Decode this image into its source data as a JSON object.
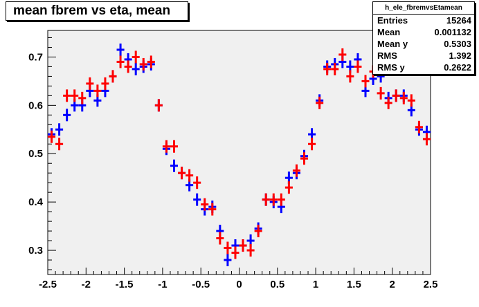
{
  "title": "mean fbrem vs eta, mean",
  "stats": {
    "name": "h_ele_fbremvsEtamean",
    "rows": [
      {
        "label": "Entries",
        "value": "15264"
      },
      {
        "label": "Mean",
        "value": "0.001132"
      },
      {
        "label": "Mean y",
        "value": "0.5303"
      },
      {
        "label": "RMS",
        "value": "1.392"
      },
      {
        "label": "RMS y",
        "value": "0.2622"
      }
    ]
  },
  "colors": {
    "plot_bg": "#f0f0f0",
    "series_blue": "#0000ff",
    "series_red": "#ff0000"
  },
  "chart_data": {
    "type": "scatter",
    "title": "mean fbrem vs eta, mean",
    "xlabel": "",
    "ylabel": "",
    "xlim": [
      -2.5,
      2.5
    ],
    "ylim": [
      0.25,
      0.755
    ],
    "x_ticks": [
      "-2.5",
      "-2",
      "-1.5",
      "-1",
      "-0.5",
      "0",
      "0.5",
      "1",
      "1.5",
      "2",
      "2.5"
    ],
    "y_ticks": [
      "0.3",
      "0.4",
      "0.5",
      "0.6",
      "0.7"
    ],
    "grid": false,
    "series": [
      {
        "color": "#0000ff",
        "x_err": 0.05,
        "points": [
          [
            -2.45,
            0.54
          ],
          [
            -2.35,
            0.55
          ],
          [
            -2.25,
            0.58
          ],
          [
            -2.15,
            0.6
          ],
          [
            -2.05,
            0.6
          ],
          [
            -1.95,
            0.63
          ],
          [
            -1.85,
            0.61
          ],
          [
            -1.75,
            0.63
          ],
          [
            -1.65,
            0.66
          ],
          [
            -1.55,
            0.715
          ],
          [
            -1.45,
            0.695
          ],
          [
            -1.35,
            0.675
          ],
          [
            -1.25,
            0.68
          ],
          [
            -1.15,
            0.685
          ],
          [
            -1.05,
            0.6
          ],
          [
            -0.95,
            0.51
          ],
          [
            -0.85,
            0.475
          ],
          [
            -0.75,
            0.46
          ],
          [
            -0.65,
            0.435
          ],
          [
            -0.55,
            0.405
          ],
          [
            -0.45,
            0.385
          ],
          [
            -0.35,
            0.39
          ],
          [
            -0.25,
            0.34
          ],
          [
            -0.15,
            0.28
          ],
          [
            -0.05,
            0.31
          ],
          [
            0.05,
            0.31
          ],
          [
            0.15,
            0.32
          ],
          [
            0.25,
            0.345
          ],
          [
            0.35,
            0.405
          ],
          [
            0.45,
            0.4
          ],
          [
            0.55,
            0.39
          ],
          [
            0.65,
            0.45
          ],
          [
            0.75,
            0.46
          ],
          [
            0.85,
            0.495
          ],
          [
            0.95,
            0.54
          ],
          [
            1.05,
            0.61
          ],
          [
            1.15,
            0.68
          ],
          [
            1.25,
            0.685
          ],
          [
            1.35,
            0.69
          ],
          [
            1.45,
            0.68
          ],
          [
            1.55,
            0.695
          ],
          [
            1.65,
            0.63
          ],
          [
            1.75,
            0.655
          ],
          [
            1.85,
            0.66
          ],
          [
            1.95,
            0.615
          ],
          [
            2.05,
            0.62
          ],
          [
            2.15,
            0.62
          ],
          [
            2.25,
            0.59
          ],
          [
            2.35,
            0.55
          ],
          [
            2.45,
            0.545
          ]
        ]
      },
      {
        "color": "#ff0000",
        "x_err": 0.05,
        "points": [
          [
            -2.45,
            0.535
          ],
          [
            -2.35,
            0.52
          ],
          [
            -2.25,
            0.62
          ],
          [
            -2.15,
            0.62
          ],
          [
            -2.05,
            0.615
          ],
          [
            -1.95,
            0.645
          ],
          [
            -1.85,
            0.63
          ],
          [
            -1.75,
            0.645
          ],
          [
            -1.65,
            0.66
          ],
          [
            -1.55,
            0.69
          ],
          [
            -1.45,
            0.68
          ],
          [
            -1.35,
            0.7
          ],
          [
            -1.25,
            0.685
          ],
          [
            -1.15,
            0.69
          ],
          [
            -1.05,
            0.6
          ],
          [
            -0.95,
            0.515
          ],
          [
            -0.85,
            0.515
          ],
          [
            -0.75,
            0.46
          ],
          [
            -0.65,
            0.455
          ],
          [
            -0.55,
            0.44
          ],
          [
            -0.45,
            0.395
          ],
          [
            -0.35,
            0.385
          ],
          [
            -0.25,
            0.325
          ],
          [
            -0.15,
            0.305
          ],
          [
            -0.05,
            0.295
          ],
          [
            0.05,
            0.31
          ],
          [
            0.15,
            0.3
          ],
          [
            0.25,
            0.34
          ],
          [
            0.35,
            0.405
          ],
          [
            0.45,
            0.405
          ],
          [
            0.55,
            0.405
          ],
          [
            0.65,
            0.43
          ],
          [
            0.75,
            0.465
          ],
          [
            0.85,
            0.49
          ],
          [
            0.95,
            0.52
          ],
          [
            1.05,
            0.605
          ],
          [
            1.15,
            0.675
          ],
          [
            1.25,
            0.675
          ],
          [
            1.35,
            0.705
          ],
          [
            1.45,
            0.66
          ],
          [
            1.55,
            0.68
          ],
          [
            1.65,
            0.65
          ],
          [
            1.75,
            0.67
          ],
          [
            1.85,
            0.625
          ],
          [
            1.95,
            0.605
          ],
          [
            2.05,
            0.62
          ],
          [
            2.15,
            0.615
          ],
          [
            2.25,
            0.61
          ],
          [
            2.35,
            0.555
          ],
          [
            2.45,
            0.53
          ]
        ]
      }
    ]
  }
}
